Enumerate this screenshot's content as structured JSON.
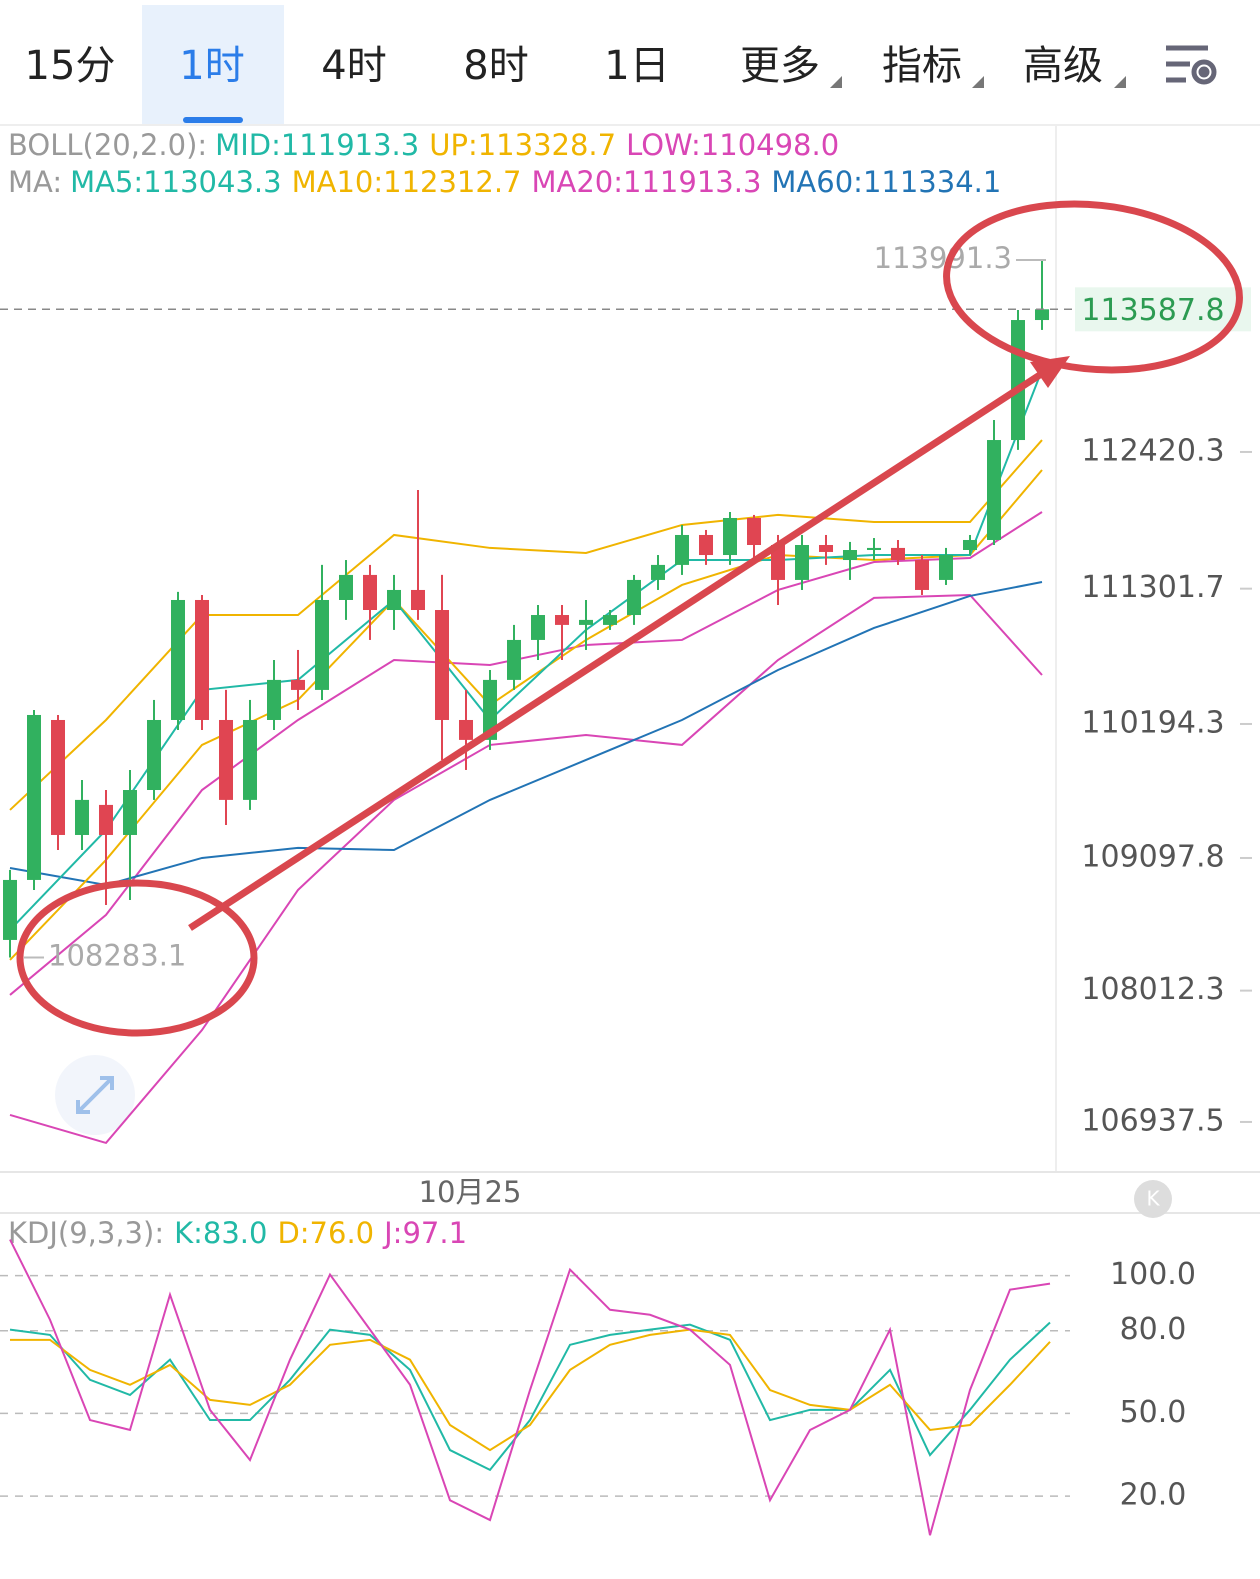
{
  "tabs": [
    "15分",
    "1时",
    "4时",
    "8时",
    "1日",
    "更多",
    "指标",
    "高级"
  ],
  "selected_tab": 1,
  "chart_data": [
    {
      "type": "candlestick",
      "boll_legend": {
        "label": "BOLL(20,2.0):",
        "items": [
          {
            "text": "MID:111913.3",
            "color": "#21b9a6"
          },
          {
            "text": "UP:113328.7",
            "color": "#f0b400"
          },
          {
            "text": "LOW:110498.0",
            "color": "#d946b5"
          }
        ]
      },
      "ma_legend": {
        "label": "MA:",
        "items": [
          {
            "text": "MA5:113043.3",
            "color": "#21b9a6"
          },
          {
            "text": "MA10:112312.7",
            "color": "#f0b400"
          },
          {
            "text": "MA20:111913.3",
            "color": "#d946b5"
          },
          {
            "text": "MA60:111334.1",
            "color": "#2274b5"
          }
        ]
      },
      "up_color": "#31b15f",
      "down_color": "#e04552",
      "open": [
        108427,
        108918,
        110227,
        109286,
        109532,
        109286,
        109654,
        110227,
        111209,
        110227,
        109573,
        110227,
        110555,
        110473,
        111209,
        111414,
        111127,
        111291,
        111127,
        110227,
        110064,
        110555,
        110882,
        111086,
        111005,
        111005,
        111086,
        111373,
        111496,
        111741,
        111577,
        111880,
        111659,
        111373,
        111659,
        111536,
        111618,
        111635,
        111536,
        111373,
        111618,
        111700,
        112518,
        113500
      ],
      "high": [
        109000,
        110309,
        110268,
        109736,
        109654,
        109818,
        110391,
        111275,
        111250,
        110473,
        110391,
        110718,
        110800,
        111496,
        111536,
        111496,
        111414,
        112109,
        111414,
        110473,
        110636,
        111005,
        111168,
        111168,
        111209,
        111127,
        111414,
        111577,
        111823,
        111782,
        111929,
        111905,
        111741,
        111741,
        111741,
        111684,
        111716,
        111700,
        111577,
        111635,
        111741,
        112682,
        113582,
        113991.3
      ],
      "low": [
        108283.1,
        108836,
        109163,
        109163,
        108713,
        108754,
        109573,
        110145,
        110145,
        109368,
        109491,
        110145,
        110309,
        110391,
        111046,
        110882,
        110964,
        111046,
        109900,
        109818,
        109982,
        110473,
        110718,
        110718,
        110800,
        110964,
        111005,
        111291,
        111414,
        111496,
        111496,
        111536,
        111168,
        111291,
        111496,
        111373,
        111536,
        111496,
        111250,
        111332,
        111577,
        111659,
        112437,
        113419
      ],
      "close": [
        108918,
        110268,
        109286,
        109573,
        109286,
        109654,
        110227,
        111209,
        110227,
        109573,
        110227,
        110555,
        110473,
        111209,
        111414,
        111127,
        111291,
        111127,
        110227,
        110064,
        110555,
        110882,
        111086,
        111005,
        111046,
        111086,
        111373,
        111496,
        111741,
        111577,
        111880,
        111659,
        111373,
        111659,
        111602,
        111618,
        111635,
        111536,
        111291,
        111577,
        111700,
        112518,
        113500,
        113587.8
      ],
      "lines": {
        "x": [
          0,
          4,
          8,
          12,
          16,
          20,
          24,
          28,
          32,
          36,
          40,
          43
        ],
        "series": [
          {
            "color": "#f0b400",
            "values": [
              109491,
              110227,
              111086,
              111086,
              111741,
              111635,
              111594,
              111823,
              111905,
              111847,
              111847,
              112518
            ]
          },
          {
            "color": "#d946b5",
            "values": [
              106995,
              106766,
              107690,
              108836,
              109573,
              110023,
              110104,
              110023,
              110718,
              111226,
              111250,
              110595
            ]
          },
          {
            "color": "#d946b5",
            "values": [
              107977,
              108632,
              109654,
              110227,
              110718,
              110677,
              110841,
              110882,
              111291,
              111520,
              111553,
              111929
            ]
          },
          {
            "color": "#2274b5",
            "values": [
              109016,
              108877,
              109098,
              109180,
              109163,
              109573,
              109900,
              110227,
              110636,
              110980,
              111242,
              111356
            ]
          },
          {
            "color": "#f0b400",
            "values": [
              108263,
              109082,
              110023,
              110391,
              111209,
              110350,
              110882,
              111332,
              111577,
              111536,
              111577,
              112273
            ]
          },
          {
            "color": "#21b9a6",
            "values": [
              108509,
              109327,
              110473,
              110555,
              111209,
              110227,
              110964,
              111536,
              111536,
              111577,
              111577,
              113091
            ]
          }
        ]
      },
      "ylim": [
        106528,
        115096
      ],
      "yticks": [
        112420.3,
        111301.7,
        110194.3,
        109097.8,
        108012.3,
        106937.5
      ],
      "last_price": 113587.8,
      "high_label": 113991.3,
      "low_label": 108283.1,
      "x_label": "10月25"
    },
    {
      "type": "line",
      "legend_label": "KDJ(9,3,3):",
      "legend": [
        {
          "text": "K:83.0",
          "color": "#21b9a6"
        },
        {
          "text": "D:76.0",
          "color": "#f0b400"
        },
        {
          "text": "J:97.1",
          "color": "#d946b5"
        }
      ],
      "series": [
        {
          "color": "#21b9a6",
          "values": [
            80.4,
            78.5,
            62.2,
            56.7,
            69.5,
            47.6,
            47.6,
            62.2,
            80.4,
            78.5,
            65.8,
            36.7,
            29.5,
            47.6,
            74.9,
            78.5,
            80.4,
            82.2,
            76.7,
            47.6,
            51.3,
            51.3,
            65.8,
            34.9,
            51.3,
            69.5,
            83.0
          ]
        },
        {
          "color": "#f0b400",
          "values": [
            76.7,
            76.7,
            65.8,
            60.4,
            67.6,
            54.9,
            53.1,
            60.4,
            74.9,
            76.7,
            69.5,
            45.8,
            36.7,
            45.8,
            65.8,
            74.9,
            78.5,
            80.4,
            78.5,
            58.5,
            53.1,
            51.3,
            60.4,
            44.0,
            45.8,
            60.4,
            76.0
          ]
        },
        {
          "color": "#d946b5",
          "values": [
            113.1,
            84.0,
            47.6,
            44.0,
            93.1,
            51.3,
            33.1,
            69.5,
            100.4,
            80.4,
            60.4,
            18.5,
            11.3,
            58.5,
            102.2,
            87.6,
            85.8,
            80.4,
            67.6,
            18.5,
            44.0,
            51.3,
            80.4,
            5.8,
            58.5,
            94.9,
            97.1
          ]
        }
      ],
      "ylim": [
        -5,
        122
      ],
      "yticks": [
        {
          "value": 100,
          "label": "100.0"
        },
        {
          "value": 80,
          "label": "80.0"
        },
        {
          "value": 50,
          "label": "50.0"
        },
        {
          "value": 20,
          "label": "20.0"
        }
      ],
      "grid": true
    }
  ]
}
